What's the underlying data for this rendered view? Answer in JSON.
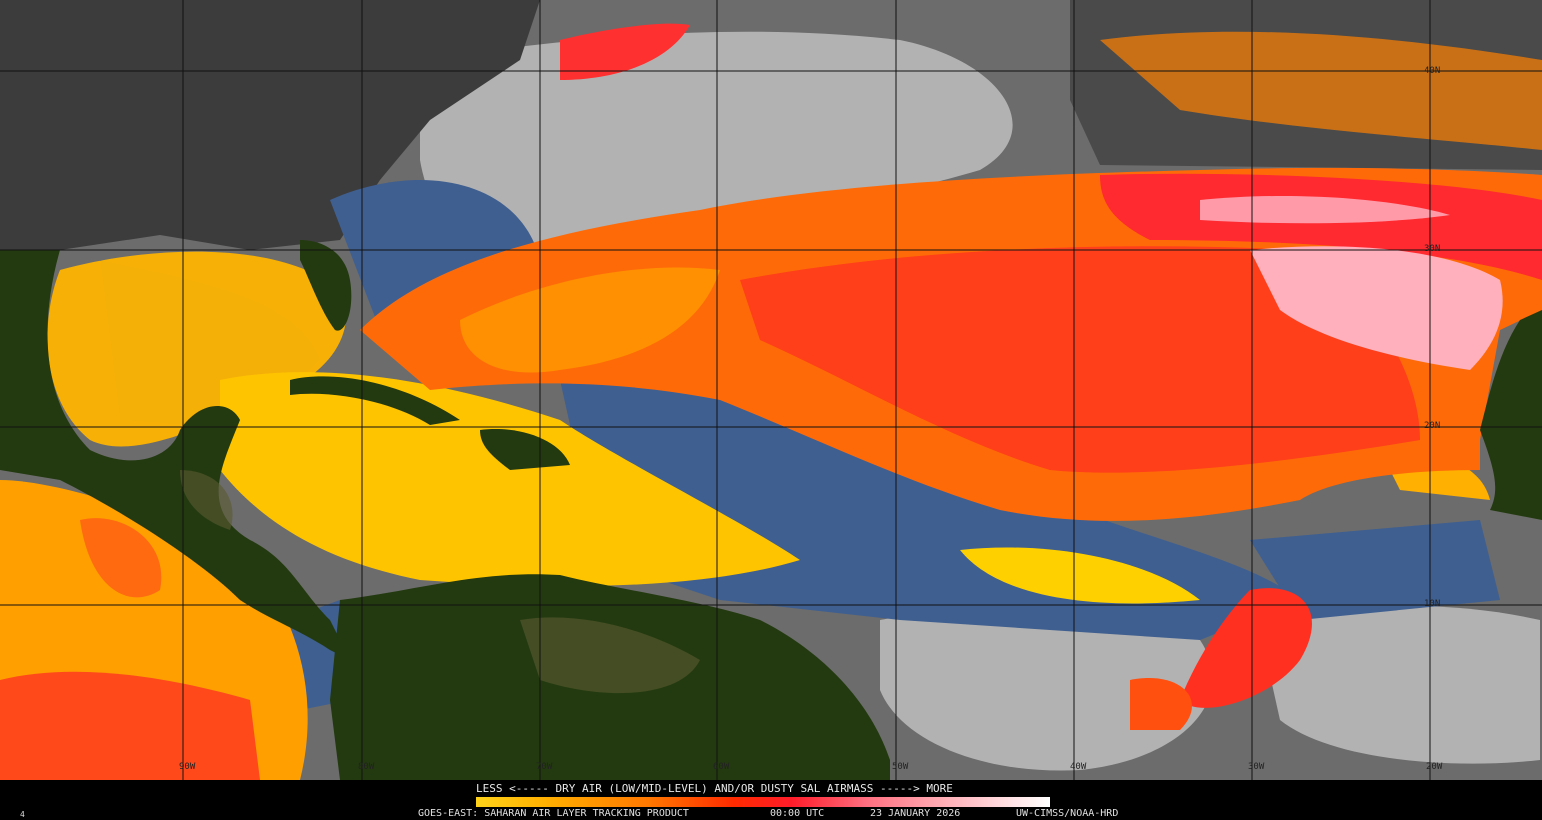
{
  "legend": {
    "title": "LESS <----- DRY AIR (LOW/MID-LEVEL) AND/OR DUSTY SAL AIRMASS -----> MORE",
    "ramp_colors": [
      "#ffd21a",
      "#ff7800",
      "#ff2a00",
      "#ff6f80",
      "#ffffff"
    ]
  },
  "footer": {
    "satellite_product": "GOES-EAST: SAHARAN AIR LAYER TRACKING PRODUCT",
    "time": "00:00 UTC",
    "date": "23 JANUARY 2026",
    "credit": "UW-CIMSS/NOAA-HRD"
  },
  "frame_number": "4",
  "grid": {
    "longitude_labels": [
      "90W",
      "80W",
      "70W",
      "60W",
      "50W",
      "40W",
      "30W",
      "20W"
    ],
    "latitude_labels": [
      "40N",
      "30N",
      "20N",
      "10N"
    ]
  },
  "colors": {
    "land": "#233a10",
    "clear_ocean": "#3f5f90",
    "cloud": "#b8b8b8",
    "sal_low": "#ffc800",
    "sal_mid": "#ff5a00",
    "sal_high": "#ff9aa8"
  }
}
